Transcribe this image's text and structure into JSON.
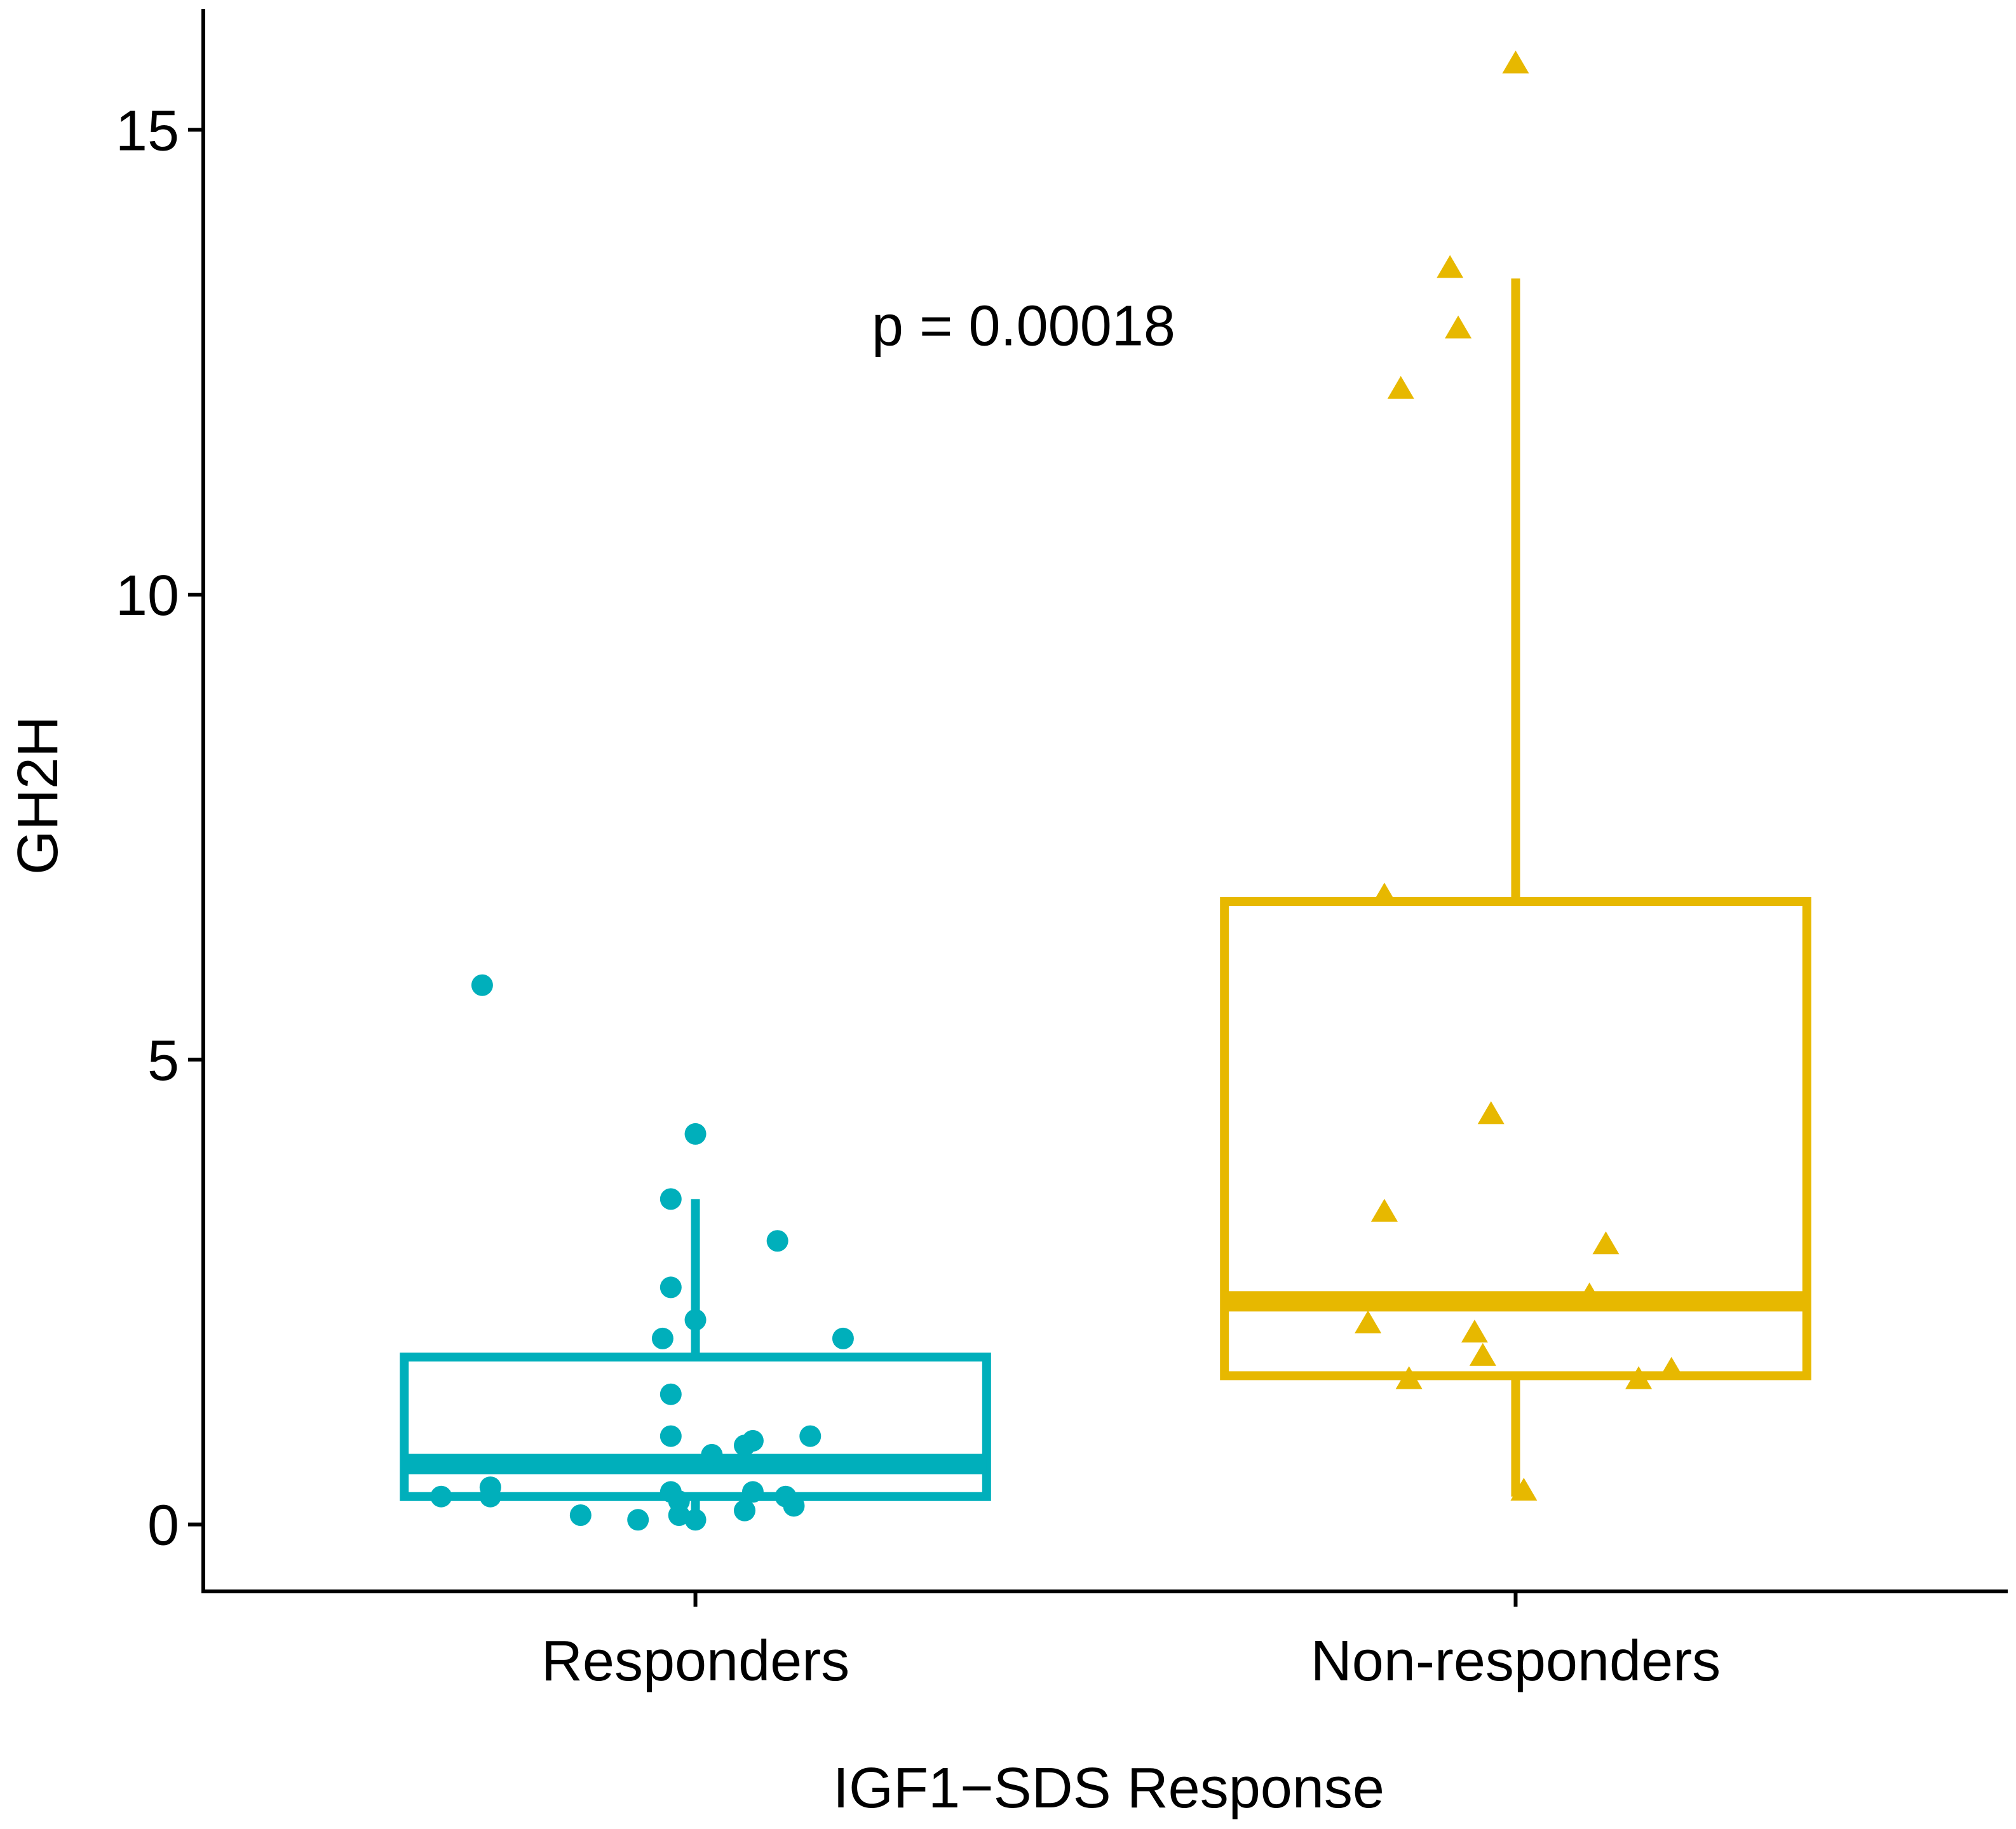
{
  "chart_data": {
    "type": "box",
    "title": "",
    "xlabel": "IGF1−SDS Response",
    "ylabel": "GH2H",
    "categories": [
      "Responders",
      "Non-responders"
    ],
    "ylim": [
      -0.72,
      16.3
    ],
    "yticks": [
      0,
      5,
      10,
      15
    ],
    "annotation": {
      "text": "p = 0.00018",
      "x": 1.4,
      "y": 12.9
    },
    "series": [
      {
        "name": "Responders",
        "color": "#00AFBB",
        "marker": "circle",
        "box": {
          "whisker_low": 0.05,
          "q1": 0.3,
          "median": 0.65,
          "q3": 1.8,
          "whisker_high": 3.5
        },
        "points": [
          {
            "x": 0.74,
            "y": 5.8
          },
          {
            "x": 1.0,
            "y": 4.2
          },
          {
            "x": 0.97,
            "y": 3.5
          },
          {
            "x": 1.1,
            "y": 3.05
          },
          {
            "x": 0.97,
            "y": 2.55
          },
          {
            "x": 1.0,
            "y": 2.2
          },
          {
            "x": 0.96,
            "y": 2.0
          },
          {
            "x": 1.18,
            "y": 2.0
          },
          {
            "x": 0.97,
            "y": 1.4
          },
          {
            "x": 0.97,
            "y": 0.95
          },
          {
            "x": 1.07,
            "y": 0.9
          },
          {
            "x": 1.14,
            "y": 0.95
          },
          {
            "x": 1.06,
            "y": 0.85
          },
          {
            "x": 1.02,
            "y": 0.75
          },
          {
            "x": 0.75,
            "y": 0.4
          },
          {
            "x": 0.69,
            "y": 0.3
          },
          {
            "x": 0.75,
            "y": 0.3
          },
          {
            "x": 0.97,
            "y": 0.35
          },
          {
            "x": 0.98,
            "y": 0.25
          },
          {
            "x": 1.07,
            "y": 0.35
          },
          {
            "x": 1.11,
            "y": 0.3
          },
          {
            "x": 1.12,
            "y": 0.2
          },
          {
            "x": 0.86,
            "y": 0.1
          },
          {
            "x": 0.93,
            "y": 0.05
          },
          {
            "x": 0.98,
            "y": 0.1
          },
          {
            "x": 1.0,
            "y": 0.05
          },
          {
            "x": 1.06,
            "y": 0.15
          }
        ]
      },
      {
        "name": "Non-responders",
        "color": "#E7B800",
        "marker": "triangle",
        "box": {
          "whisker_low": 0.3,
          "q1": 1.6,
          "median": 2.4,
          "q3": 6.7,
          "whisker_high": 13.4
        },
        "points": [
          {
            "x": 2.0,
            "y": 15.7
          },
          {
            "x": 1.92,
            "y": 13.5
          },
          {
            "x": 1.93,
            "y": 12.85
          },
          {
            "x": 1.86,
            "y": 12.2
          },
          {
            "x": 1.84,
            "y": 6.75
          },
          {
            "x": 1.97,
            "y": 4.4
          },
          {
            "x": 1.84,
            "y": 3.35
          },
          {
            "x": 2.11,
            "y": 3.0
          },
          {
            "x": 2.09,
            "y": 2.45
          },
          {
            "x": 1.82,
            "y": 2.15
          },
          {
            "x": 1.95,
            "y": 2.05
          },
          {
            "x": 1.96,
            "y": 1.8
          },
          {
            "x": 1.87,
            "y": 1.55
          },
          {
            "x": 2.15,
            "y": 1.55
          },
          {
            "x": 2.19,
            "y": 1.65
          },
          {
            "x": 2.01,
            "y": 0.35
          }
        ]
      }
    ]
  }
}
